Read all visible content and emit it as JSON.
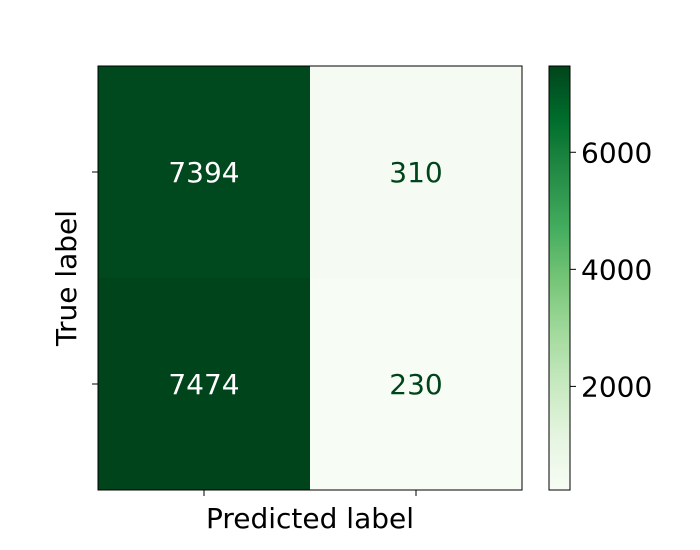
{
  "chart_data": {
    "type": "heatmap",
    "title": "",
    "xlabel": "Predicted label",
    "ylabel": "True label",
    "x_categories": [
      "",
      ""
    ],
    "y_categories": [
      "",
      ""
    ],
    "values": [
      [
        7394,
        310
      ],
      [
        7474,
        230
      ]
    ],
    "colormap": "Greens",
    "colorbar": {
      "range": [
        230,
        7474
      ],
      "ticks": [
        2000,
        4000,
        6000
      ],
      "tick_labels": [
        "2000",
        "4000",
        "6000"
      ]
    },
    "grid": false
  }
}
